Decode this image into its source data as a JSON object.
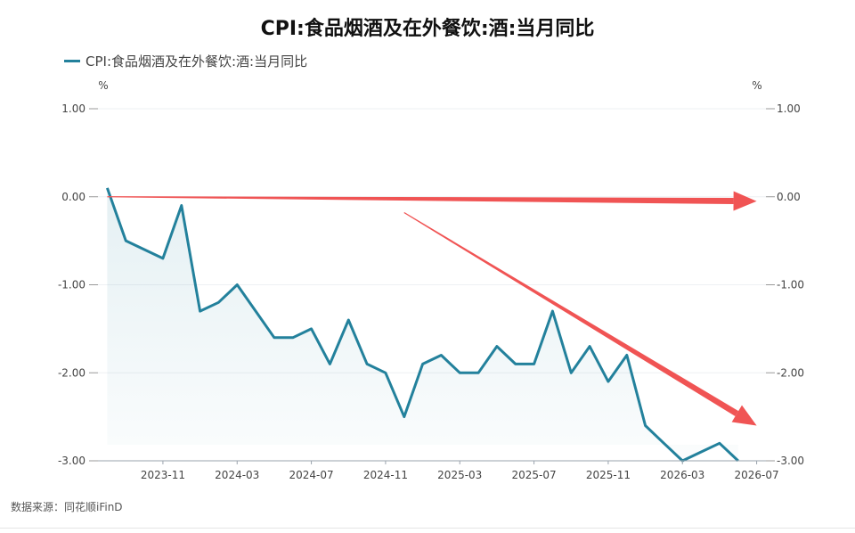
{
  "chart_data": {
    "type": "line",
    "title": "CPI:食品烟酒及在外餐饮:酒:当月同比",
    "legend_position": "top-left",
    "y_unit_left": "%",
    "y_unit_right": "%",
    "ylim": [
      -3.0,
      1.0
    ],
    "y_ticks": [
      "1.00",
      "0.00",
      "-1.00",
      "-2.00",
      "-3.00"
    ],
    "x_ticks": [
      "2023-11",
      "2024-03",
      "2024-07",
      "2024-11",
      "2025-03",
      "2025-07",
      "2025-11",
      "2026-03",
      "2026-07"
    ],
    "grid": true,
    "series": [
      {
        "name": "CPI:食品烟酒及在外餐饮:酒:当月同比",
        "color": "#23819c",
        "x": [
          "2023-08",
          "2023-09",
          "2023-10",
          "2023-11",
          "2023-12",
          "2024-01",
          "2024-02",
          "2024-03",
          "2024-04",
          "2024-05",
          "2024-06",
          "2024-07",
          "2024-08",
          "2024-09",
          "2024-10",
          "2024-11",
          "2024-12",
          "2025-01",
          "2025-02",
          "2025-03",
          "2025-04",
          "2025-05",
          "2025-06",
          "2025-07",
          "2025-08",
          "2025-09",
          "2025-10",
          "2025-11",
          "2025-12",
          "2026-01",
          "2026-02",
          "2026-03",
          "2026-04",
          "2026-05",
          "2026-06"
        ],
        "values": [
          0.1,
          -0.5,
          -0.6,
          -0.7,
          -0.1,
          -1.3,
          -1.2,
          -1.0,
          -1.3,
          -1.6,
          -1.6,
          -1.5,
          -1.9,
          -1.4,
          -1.9,
          -2.0,
          -2.5,
          -1.9,
          -1.8,
          -2.0,
          -2.0,
          -1.7,
          -1.9,
          -1.9,
          -1.3,
          -2.0,
          -1.7,
          -2.1,
          -1.8,
          -2.6,
          -2.8,
          -3.0,
          -2.9,
          -2.8,
          -3.0
        ]
      }
    ],
    "annotations": [
      {
        "type": "arrow",
        "color": "#f05454",
        "from": {
          "x": "2023-08",
          "y": 0.0
        },
        "to": {
          "x": "2026-07",
          "y": -0.05
        }
      },
      {
        "type": "arrow",
        "color": "#f05454",
        "from": {
          "x": "2024-12",
          "y": -0.18
        },
        "to": {
          "x": "2026-07",
          "y": -2.6
        }
      }
    ]
  },
  "source_text": "数据来源：同花顺iFinD"
}
